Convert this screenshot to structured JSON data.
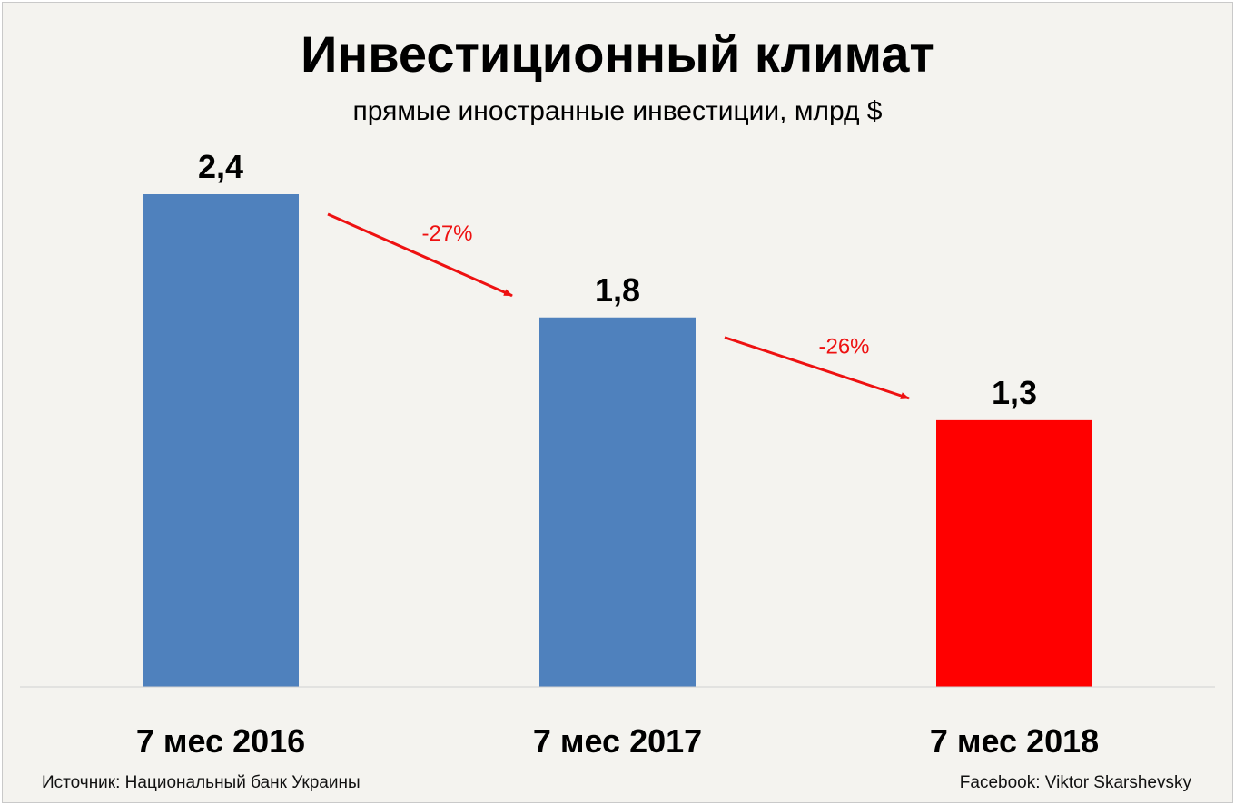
{
  "chart_data": {
    "type": "bar",
    "title": "Инвестиционный климат",
    "subtitle": "прямые иностранные инвестиции, млрд $",
    "categories": [
      "7 мес 2016",
      "7 мес 2017",
      "7 мес 2018"
    ],
    "values": [
      2.4,
      1.8,
      1.3
    ],
    "value_labels": [
      "2,4",
      "1,8",
      "1,3"
    ],
    "bar_colors": [
      "#4f81bd",
      "#4f81bd",
      "#ff0000"
    ],
    "ylim": [
      0,
      2.4
    ],
    "grid": false,
    "annotations": [
      {
        "from": 0,
        "to": 1,
        "text": "-27%",
        "color": "#ee1111"
      },
      {
        "from": 1,
        "to": 2,
        "text": "-26%",
        "color": "#ee1111"
      }
    ]
  },
  "footer": {
    "source": "Источник: Национальный банк Украины",
    "credit": "Facebook: Viktor Skarshevsky"
  }
}
